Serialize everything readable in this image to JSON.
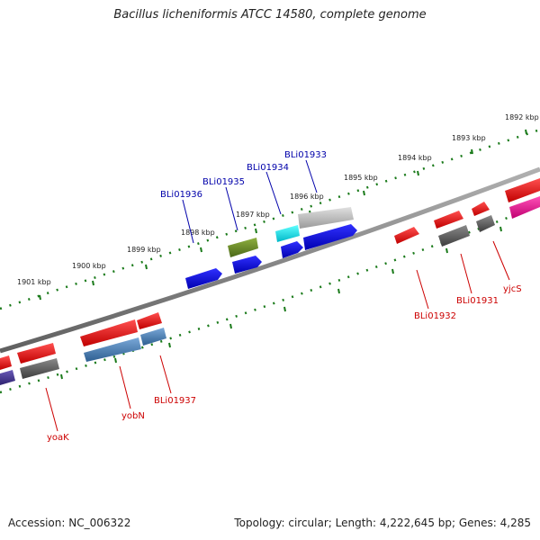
{
  "title": "Bacillus licheniformis ATCC 14580, complete genome",
  "footer": {
    "accession": "Accession: NC_006322",
    "topology": "Topology: circular; Length: 4,222,645 bp; Genes: 4,285"
  },
  "scale": {
    "ticks": [
      "1901 kbp",
      "1900 kbp",
      "1899 kbp",
      "1898 kbp",
      "1897 kbp",
      "1896 kbp",
      "1895 kbp",
      "1894 kbp",
      "1893 kbp",
      "1892 kbp"
    ]
  },
  "genes": {
    "top_labels": [
      "BLi01936",
      "BLi01935",
      "BLi01934",
      "BLi01933"
    ],
    "bottom_labels": [
      "yoaK",
      "yobN",
      "BLi01937",
      "BLi01932",
      "BLi01931",
      "yjcS"
    ]
  },
  "colors": {
    "top_label": "#0000aa",
    "bottom_label": "#cc0000",
    "backbone": "#808080",
    "tick": "#1a7a1a"
  }
}
